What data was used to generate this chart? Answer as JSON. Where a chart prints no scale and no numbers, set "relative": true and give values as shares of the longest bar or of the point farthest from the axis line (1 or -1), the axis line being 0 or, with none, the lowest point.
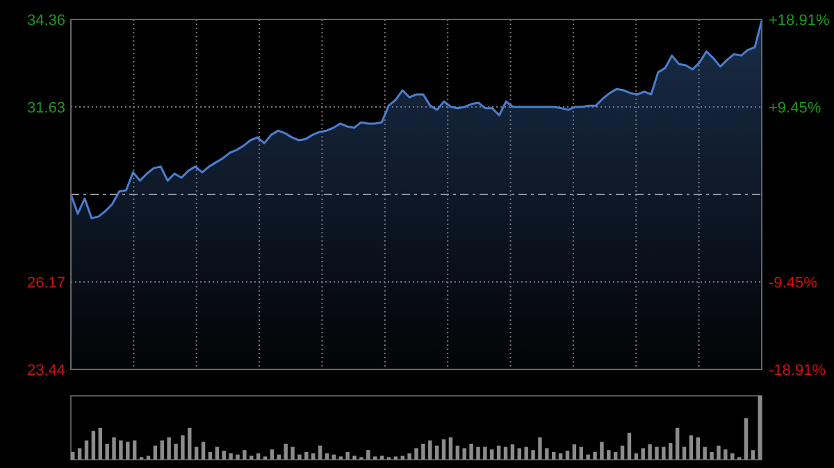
{
  "chart_data": [
    {
      "type": "area",
      "categories": [
        null,
        null,
        null,
        null,
        null,
        null,
        null,
        null,
        null,
        null,
        null,
        null,
        null,
        null,
        null,
        null,
        null,
        null,
        null,
        null,
        null,
        null,
        null,
        null,
        null,
        null,
        null,
        null,
        null,
        null,
        null,
        null,
        null,
        null,
        null,
        null,
        null,
        null,
        null,
        null,
        null,
        null,
        null,
        null,
        null,
        null,
        null,
        null,
        null,
        null,
        null,
        null,
        null,
        null,
        null,
        null,
        null,
        null,
        null,
        null,
        null,
        null,
        null,
        null,
        null,
        null,
        null,
        null,
        null,
        null,
        null,
        null,
        null,
        null,
        null,
        null,
        null,
        null,
        null,
        null,
        null,
        null,
        null,
        null,
        null,
        null,
        null,
        null,
        null,
        null,
        null,
        null,
        null,
        null,
        null,
        null,
        null,
        null,
        null,
        null,
        null
      ],
      "series": [
        {
          "color": "#4a7fd0",
          "values": [
            28.9,
            28.3,
            28.77,
            28.16,
            28.21,
            28.38,
            28.6,
            28.99,
            29.03,
            29.59,
            29.33,
            29.55,
            29.72,
            29.77,
            29.33,
            29.55,
            29.42,
            29.64,
            29.77,
            29.59,
            29.77,
            29.9,
            30.03,
            30.2,
            30.29,
            30.42,
            30.59,
            30.68,
            30.5,
            30.76,
            30.89,
            30.81,
            30.68,
            30.59,
            30.63,
            30.76,
            30.85,
            30.89,
            30.98,
            31.11,
            31.02,
            30.98,
            31.15,
            31.11,
            31.11,
            31.15,
            31.67,
            31.85,
            32.15,
            31.93,
            32.02,
            32.02,
            31.67,
            31.54,
            31.8,
            31.63,
            31.59,
            31.63,
            31.72,
            31.76,
            31.59,
            31.59,
            31.37,
            31.8,
            31.63,
            31.63,
            31.63,
            31.63,
            31.63,
            31.63,
            31.63,
            31.59,
            31.54,
            31.63,
            31.63,
            31.67,
            31.67,
            31.89,
            32.06,
            32.19,
            32.15,
            32.06,
            32.02,
            32.11,
            32.02,
            32.71,
            32.84,
            33.23,
            32.97,
            32.93,
            32.8,
            33.02,
            33.36,
            33.15,
            32.89,
            33.1,
            33.28,
            33.23,
            33.41,
            33.49,
            34.32
          ]
        }
      ],
      "ylim": [
        23.44,
        34.36
      ],
      "yticks": [
        23.44,
        26.17,
        31.63,
        34.36
      ],
      "y2lim": [
        -18.91,
        18.91
      ],
      "y2ticks": [
        {
          "value": -18.91,
          "label": "-18.91%"
        },
        {
          "value": -9.45,
          "label": "-9.45%"
        },
        {
          "value": 9.45,
          "label": "+9.45%"
        },
        {
          "value": 18.91,
          "label": "+18.91%"
        }
      ],
      "ref_lines": [
        {
          "axis": "y",
          "value": 28.9,
          "line_style": "dashed"
        }
      ],
      "grid": true,
      "tick_labels": "y"
    },
    {
      "type": "bar",
      "relative": true,
      "categories": [
        null,
        null,
        null,
        null,
        null,
        null,
        null,
        null,
        null,
        null,
        null,
        null,
        null,
        null,
        null,
        null,
        null,
        null,
        null,
        null,
        null,
        null,
        null,
        null,
        null,
        null,
        null,
        null,
        null,
        null,
        null,
        null,
        null,
        null,
        null,
        null,
        null,
        null,
        null,
        null,
        null,
        null,
        null,
        null,
        null,
        null,
        null,
        null,
        null,
        null,
        null,
        null,
        null,
        null,
        null,
        null,
        null,
        null,
        null,
        null,
        null,
        null,
        null,
        null,
        null,
        null,
        null,
        null,
        null,
        null,
        null,
        null,
        null,
        null,
        null,
        null,
        null,
        null,
        null,
        null,
        null,
        null,
        null,
        null,
        null,
        null,
        null,
        null,
        null,
        null,
        null,
        null,
        null,
        null,
        null,
        null,
        null,
        null,
        null,
        null,
        null
      ],
      "color": "#8c8c8c",
      "values": [
        0.12,
        0.18,
        0.3,
        0.45,
        0.5,
        0.25,
        0.35,
        0.3,
        0.28,
        0.3,
        0.04,
        0.06,
        0.22,
        0.3,
        0.35,
        0.25,
        0.38,
        0.5,
        0.2,
        0.28,
        0.12,
        0.2,
        0.14,
        0.1,
        0.08,
        0.15,
        0.06,
        0.1,
        0.05,
        0.16,
        0.08,
        0.25,
        0.2,
        0.08,
        0.12,
        0.1,
        0.22,
        0.1,
        0.08,
        0.05,
        0.12,
        0.06,
        0.04,
        0.15,
        0.05,
        0.06,
        0.04,
        0.05,
        0.06,
        0.1,
        0.18,
        0.25,
        0.3,
        0.22,
        0.32,
        0.35,
        0.22,
        0.18,
        0.25,
        0.2,
        0.2,
        0.16,
        0.22,
        0.2,
        0.24,
        0.18,
        0.2,
        0.15,
        0.35,
        0.18,
        0.12,
        0.1,
        0.14,
        0.24,
        0.2,
        0.08,
        0.12,
        0.28,
        0.15,
        0.12,
        0.22,
        0.42,
        0.1,
        0.18,
        0.24,
        0.2,
        0.2,
        0.26,
        0.5,
        0.2,
        0.38,
        0.35,
        0.2,
        0.12,
        0.22,
        0.16,
        0.1,
        0.04,
        0.65,
        0.15,
        1.0
      ]
    }
  ]
}
